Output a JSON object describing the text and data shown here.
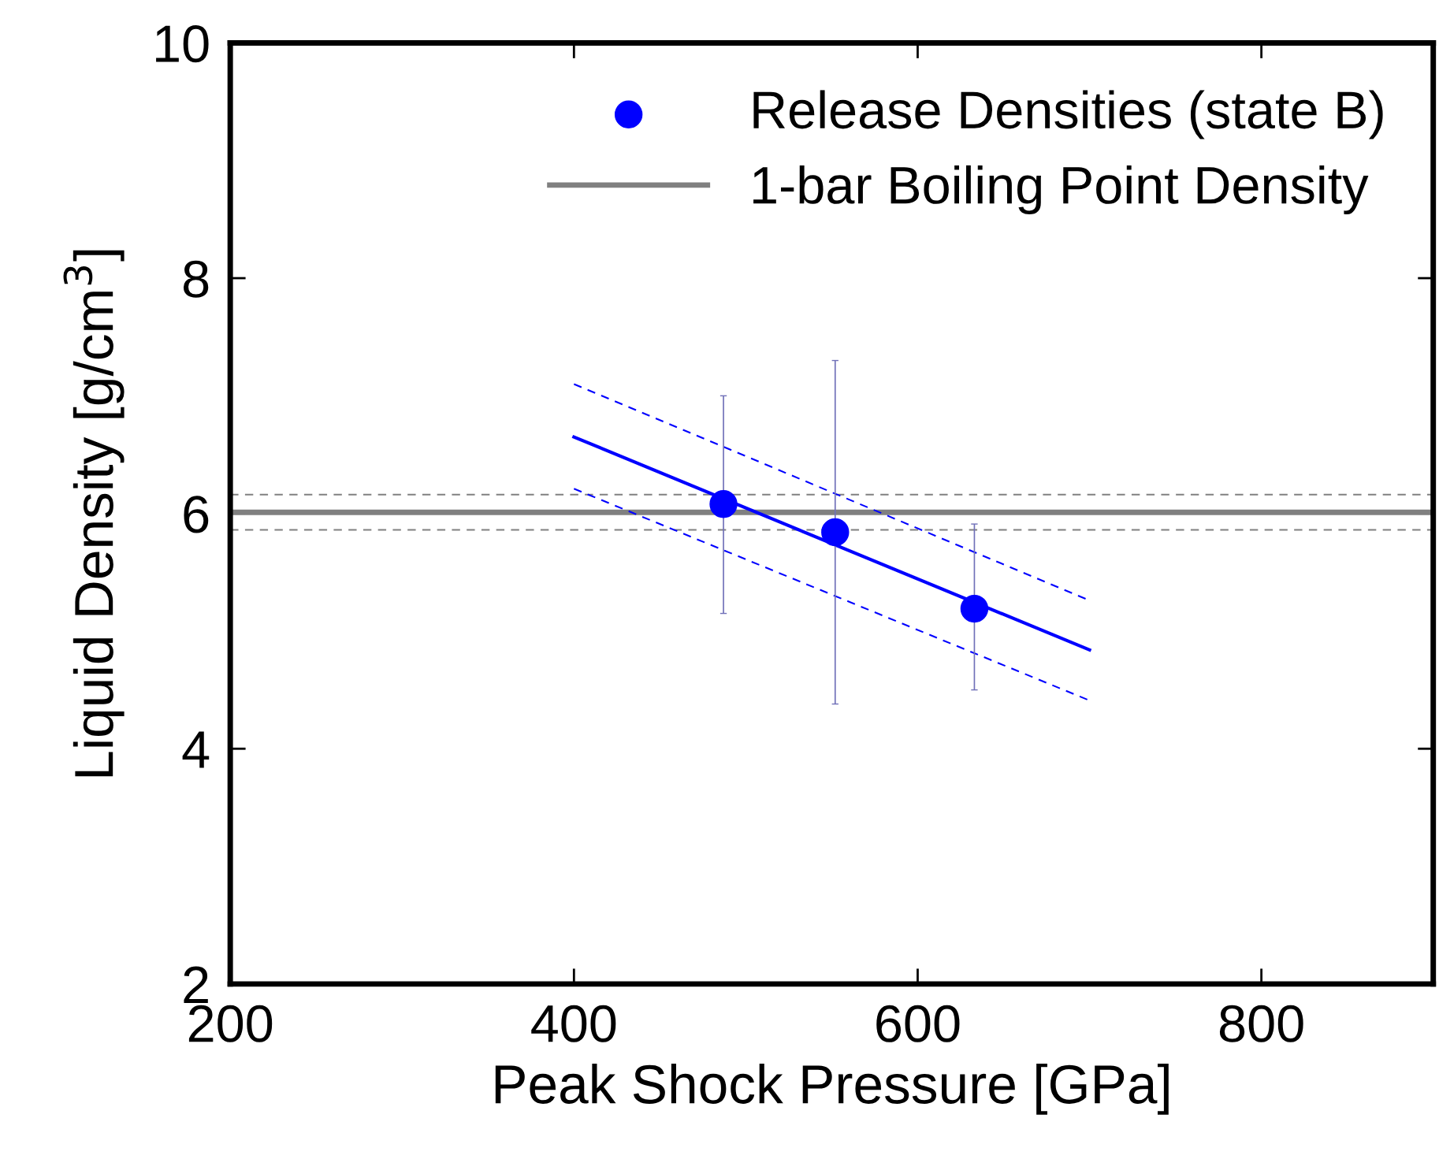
{
  "chart_data": {
    "type": "scatter",
    "xlabel": "Peak Shock Pressure [GPa]",
    "ylabel": "Liquid Density [g/cm$^{3}$]",
    "xlim": [
      200,
      900
    ],
    "ylim": [
      2,
      10
    ],
    "xticks": [
      200,
      400,
      600,
      800
    ],
    "yticks": [
      2,
      4,
      6,
      8,
      10
    ],
    "grid": false,
    "legend": "top right",
    "series": [
      {
        "name": "Release Densities (state B)",
        "color": "#0000ff",
        "marker": "circle",
        "x": [
          487,
          552,
          633
        ],
        "values": [
          6.08,
          5.84,
          5.19
        ],
        "errors": [
          [
            5.15,
            7.0
          ],
          [
            4.38,
            7.3
          ],
          [
            4.5,
            5.91
          ]
        ]
      },
      {
        "type": "line",
        "color": "#0000ff",
        "line_style": "solid",
        "marker": "none",
        "x": [
          400,
          700
        ],
        "values": [
          6.65,
          4.84
        ]
      },
      {
        "type": "line",
        "color": "#0000ff",
        "line_style": "dashed",
        "marker": "none",
        "x": [
          400,
          700
        ],
        "values": [
          7.1,
          5.26
        ]
      },
      {
        "type": "line",
        "color": "#0000ff",
        "line_style": "dashed",
        "marker": "none",
        "x": [
          400,
          700
        ],
        "values": [
          6.21,
          4.41
        ]
      }
    ],
    "ref_lines": [
      {
        "axis": "y",
        "value": 6.01,
        "label": "1-bar Boiling Point Density",
        "color": "#808080",
        "line_style": "solid"
      },
      {
        "axis": "y",
        "value": 6.16,
        "color": "#808080",
        "line_style": "dashed"
      },
      {
        "axis": "y",
        "value": 5.86,
        "color": "#808080",
        "line_style": "dashed"
      }
    ]
  }
}
